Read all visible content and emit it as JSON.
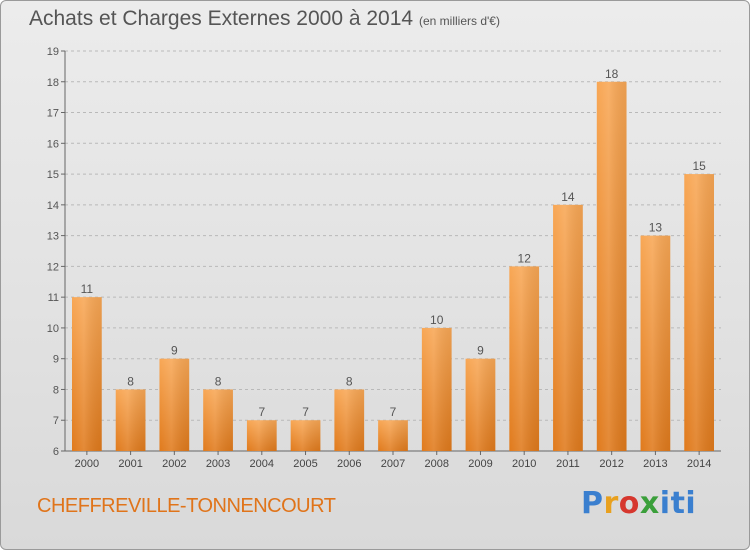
{
  "header": {
    "title": "Achats et Charges Externes 2000 à 2014",
    "unit": "(en milliers d'€)"
  },
  "footer": {
    "commune": "CHEFFREVILLE-TONNENCOURT",
    "logo": "Proxiti"
  },
  "colors": {
    "bar_light": "#f7a552",
    "bar_dark": "#e07a1c",
    "commune_text": "#e0741a"
  },
  "chart_data": {
    "type": "bar",
    "title": "Achats et Charges Externes 2000 à 2014",
    "subtitle": "(en milliers d'€)",
    "categories": [
      "2000",
      "2001",
      "2002",
      "2003",
      "2004",
      "2005",
      "2006",
      "2007",
      "2008",
      "2009",
      "2010",
      "2011",
      "2012",
      "2013",
      "2014"
    ],
    "values": [
      11,
      8,
      9,
      8,
      7,
      7,
      8,
      7,
      10,
      9,
      12,
      14,
      18,
      13,
      15
    ],
    "ylim": [
      6,
      19
    ],
    "yticks": [
      6,
      7,
      8,
      9,
      10,
      11,
      12,
      13,
      14,
      15,
      16,
      17,
      18,
      19
    ],
    "grid": "horizontal dashed",
    "data_labels": true
  }
}
